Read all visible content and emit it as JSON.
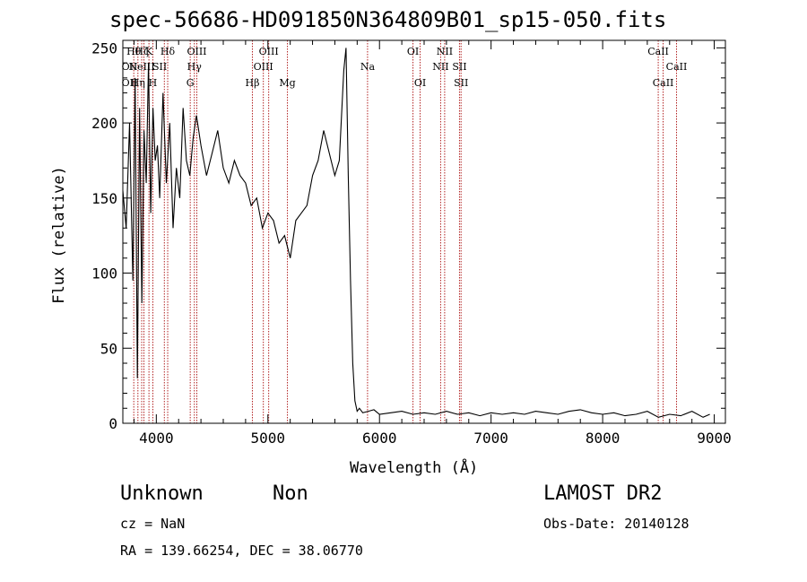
{
  "chart_data": {
    "type": "line",
    "title": "spec-56686-HD091850N364809B01_sp15-050.fits",
    "xlabel": "Wavelength (Å)",
    "ylabel": "Flux (relative)",
    "xlim": [
      3700,
      9100
    ],
    "ylim": [
      0,
      255
    ],
    "x_ticks": [
      4000,
      5000,
      6000,
      7000,
      8000,
      9000
    ],
    "y_ticks": [
      0,
      50,
      100,
      150,
      200,
      250
    ],
    "grid": false,
    "series": [
      {
        "x": [
          3700,
          3730,
          3760,
          3790,
          3810,
          3830,
          3850,
          3870,
          3890,
          3910,
          3930,
          3950,
          3970,
          3990,
          4010,
          4030,
          4060,
          4090,
          4120,
          4150,
          4180,
          4210,
          4240,
          4270,
          4300,
          4330,
          4360,
          4400,
          4450,
          4500,
          4550,
          4600,
          4650,
          4700,
          4750,
          4800,
          4850,
          4900,
          4950,
          5000,
          5050,
          5100,
          5150,
          5200,
          5250,
          5300,
          5350,
          5400,
          5450,
          5500,
          5550,
          5600,
          5640,
          5680,
          5700,
          5720,
          5740,
          5760,
          5780,
          5800,
          5820,
          5850,
          5900,
          5950,
          6000,
          6100,
          6200,
          6300,
          6400,
          6500,
          6600,
          6700,
          6800,
          6900,
          7000,
          7100,
          7200,
          7300,
          7400,
          7500,
          7600,
          7700,
          7800,
          7900,
          8000,
          8100,
          8200,
          8300,
          8400,
          8500,
          8600,
          8700,
          8800,
          8900,
          8960
        ],
        "y": [
          155,
          130,
          200,
          95,
          230,
          30,
          210,
          80,
          195,
          160,
          240,
          140,
          210,
          175,
          185,
          150,
          220,
          160,
          200,
          130,
          170,
          150,
          210,
          175,
          165,
          190,
          205,
          185,
          165,
          180,
          195,
          170,
          160,
          175,
          165,
          160,
          145,
          150,
          130,
          140,
          135,
          120,
          125,
          110,
          135,
          140,
          145,
          165,
          175,
          195,
          180,
          165,
          175,
          235,
          250,
          165,
          95,
          40,
          15,
          8,
          10,
          7,
          8,
          9,
          6,
          7,
          8,
          6,
          7,
          6,
          8,
          6,
          7,
          5,
          7,
          6,
          7,
          6,
          8,
          7,
          6,
          8,
          9,
          7,
          6,
          7,
          5,
          6,
          8,
          4,
          6,
          5,
          8,
          4,
          6
        ]
      }
    ],
    "lines": [
      {
        "x": 3798,
        "labels": [
          "Hθ",
          "OII",
          "OII"
        ]
      },
      {
        "x": 3835,
        "labels": [
          "Hη"
        ]
      },
      {
        "x": 3869,
        "labels": [
          "NeIII"
        ]
      },
      {
        "x": 3889,
        "labels": [
          "Hζ"
        ]
      },
      {
        "x": 3934,
        "labels": [
          "K"
        ]
      },
      {
        "x": 3969,
        "labels": [
          "H"
        ]
      },
      {
        "x": 4072,
        "labels": [
          "SII"
        ]
      },
      {
        "x": 4102,
        "labels": [
          "Hδ"
        ]
      },
      {
        "x": 4304,
        "labels": [
          "G"
        ]
      },
      {
        "x": 4341,
        "labels": [
          "Hγ"
        ]
      },
      {
        "x": 4363,
        "labels": [
          "OIII"
        ]
      },
      {
        "x": 4861,
        "labels": [
          "Hβ"
        ]
      },
      {
        "x": 4959,
        "labels": [
          "OIII"
        ]
      },
      {
        "x": 5007,
        "labels": [
          "OIII"
        ]
      },
      {
        "x": 5175,
        "labels": [
          "Mg"
        ]
      },
      {
        "x": 5893,
        "labels": [
          "Na"
        ]
      },
      {
        "x": 6300,
        "labels": [
          "OI"
        ]
      },
      {
        "x": 6364,
        "labels": [
          "OI"
        ]
      },
      {
        "x": 6548,
        "labels": [
          "NII"
        ]
      },
      {
        "x": 6584,
        "labels": [
          "NII"
        ]
      },
      {
        "x": 6717,
        "labels": [
          "SII"
        ]
      },
      {
        "x": 6731,
        "labels": [
          "SII"
        ]
      },
      {
        "x": 8498,
        "labels": [
          "CaII"
        ]
      },
      {
        "x": 8542,
        "labels": [
          "CaII"
        ]
      },
      {
        "x": 8662,
        "labels": [
          "CaII"
        ]
      }
    ],
    "line_labels": [
      {
        "text": "Hθ",
        "x": 3798,
        "row": 0
      },
      {
        "text": "OII",
        "x": 3760,
        "row": 1
      },
      {
        "text": "OII",
        "x": 3760,
        "row": 2
      },
      {
        "text": "Hη",
        "x": 3835,
        "row": 2
      },
      {
        "text": "NeIII",
        "x": 3869,
        "row": 1
      },
      {
        "text": "Hζ",
        "x": 3870,
        "row": 0
      },
      {
        "text": "K",
        "x": 3934,
        "row": 0
      },
      {
        "text": "H",
        "x": 3969,
        "row": 2
      },
      {
        "text": "SII",
        "x": 4030,
        "row": 1
      },
      {
        "text": "Hδ",
        "x": 4102,
        "row": 0
      },
      {
        "text": "OIII",
        "x": 4363,
        "row": 0
      },
      {
        "text": "Hγ",
        "x": 4341,
        "row": 1
      },
      {
        "text": "G",
        "x": 4304,
        "row": 2
      },
      {
        "text": "OIII",
        "x": 5007,
        "row": 0
      },
      {
        "text": "OIII",
        "x": 4959,
        "row": 1
      },
      {
        "text": "Hβ",
        "x": 4861,
        "row": 2
      },
      {
        "text": "Mg",
        "x": 5175,
        "row": 2
      },
      {
        "text": "Na",
        "x": 5893,
        "row": 1
      },
      {
        "text": "OI",
        "x": 6300,
        "row": 0
      },
      {
        "text": "OI",
        "x": 6364,
        "row": 2
      },
      {
        "text": "NII",
        "x": 6584,
        "row": 0
      },
      {
        "text": "NII",
        "x": 6548,
        "row": 1
      },
      {
        "text": "SII",
        "x": 6717,
        "row": 1
      },
      {
        "text": "SII",
        "x": 6731,
        "row": 2
      },
      {
        "text": "CaII",
        "x": 8498,
        "row": 0
      },
      {
        "text": "CaII",
        "x": 8662,
        "row": 1
      },
      {
        "text": "CaII",
        "x": 8542,
        "row": 2
      }
    ],
    "line_color": "#b22222"
  },
  "info": {
    "class": "Unknown",
    "subclass": "Non",
    "survey": "LAMOST DR2",
    "cz": "cz = NaN",
    "obs_date": "Obs-Date: 20140128",
    "coords": "RA = 139.66254, DEC =  38.06770"
  }
}
